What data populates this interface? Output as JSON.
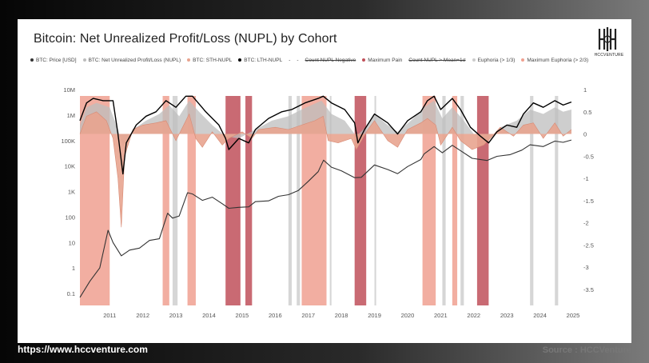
{
  "title": "Bitcoin: Net Unrealized Profit/Loss (NUPL) by Cohort",
  "logo_text": "HCCVENTURE",
  "footer": {
    "url": "https://www.hccventure.com",
    "source": "Source : HCCVenture"
  },
  "legend": [
    {
      "label": "BTC: Price [USD]",
      "color": "#333333",
      "strike": false
    },
    {
      "label": "BTC: Net Unrealized Profit/Loss (NUPL)",
      "color": "#bdbdbd",
      "strike": false
    },
    {
      "label": "BTC: STH-NUPL",
      "color": "#e8a48f",
      "strike": false
    },
    {
      "label": "BTC: LTH-NUPL",
      "color": "#000000",
      "strike": false
    },
    {
      "label": "-",
      "color": "",
      "strike": false
    },
    {
      "label": "-",
      "color": "",
      "strike": false
    },
    {
      "label": "Count NUPL Negative",
      "color": "",
      "strike": true
    },
    {
      "label": "Maximum Pain",
      "color": "#c0505a",
      "strike": false
    },
    {
      "label": "Count NUPL > Mean+1σ",
      "color": "",
      "strike": true
    },
    {
      "label": "Euphoria (> 1/3)",
      "color": "#cccccc",
      "strike": false
    },
    {
      "label": "Maximum Euphoria (> 2/3)",
      "color": "#f0a090",
      "strike": false
    }
  ],
  "chart_data": {
    "type": "line",
    "x_ticks": [
      "2011",
      "2012",
      "2013",
      "2014",
      "2015",
      "2016",
      "2017",
      "2018",
      "2019",
      "2020",
      "2021",
      "2022",
      "2023",
      "2024",
      "2025"
    ],
    "y_left_ticks": [
      "10M",
      "1M",
      "100K",
      "10K",
      "1K",
      "100",
      "10",
      "1",
      "0.1"
    ],
    "y_left_scale": "log",
    "y_right_ticks": [
      "1",
      "0.5",
      "0",
      "-0.5",
      "-1",
      "-1.5",
      "-2",
      "-2.5",
      "-3",
      "-3.5"
    ],
    "y_right_range": [
      -3.5,
      1
    ],
    "x_range": [
      2010.6,
      2025.5
    ],
    "series": [
      {
        "name": "BTC: Price [USD]",
        "axis": "left",
        "color": "#333333",
        "points": [
          [
            2010.6,
            0.07
          ],
          [
            2010.9,
            0.3
          ],
          [
            2011.2,
            1
          ],
          [
            2011.45,
            30
          ],
          [
            2011.6,
            10
          ],
          [
            2011.85,
            3
          ],
          [
            2012.1,
            5
          ],
          [
            2012.4,
            6
          ],
          [
            2012.7,
            12
          ],
          [
            2013.0,
            14
          ],
          [
            2013.25,
            140
          ],
          [
            2013.4,
            90
          ],
          [
            2013.6,
            110
          ],
          [
            2013.85,
            900
          ],
          [
            2014.0,
            800
          ],
          [
            2014.3,
            450
          ],
          [
            2014.6,
            600
          ],
          [
            2014.9,
            330
          ],
          [
            2015.1,
            220
          ],
          [
            2015.4,
            240
          ],
          [
            2015.7,
            250
          ],
          [
            2015.9,
            400
          ],
          [
            2016.3,
            430
          ],
          [
            2016.6,
            650
          ],
          [
            2016.9,
            750
          ],
          [
            2017.2,
            1100
          ],
          [
            2017.5,
            2500
          ],
          [
            2017.8,
            6000
          ],
          [
            2017.96,
            17000
          ],
          [
            2018.2,
            9000
          ],
          [
            2018.5,
            6500
          ],
          [
            2018.9,
            3500
          ],
          [
            2019.1,
            3600
          ],
          [
            2019.5,
            11000
          ],
          [
            2019.9,
            7300
          ],
          [
            2020.2,
            5000
          ],
          [
            2020.5,
            9500
          ],
          [
            2020.9,
            18000
          ],
          [
            2021.0,
            30000
          ],
          [
            2021.3,
            58000
          ],
          [
            2021.55,
            33000
          ],
          [
            2021.85,
            65000
          ],
          [
            2022.1,
            40000
          ],
          [
            2022.45,
            20000
          ],
          [
            2022.9,
            16500
          ],
          [
            2023.2,
            24000
          ],
          [
            2023.6,
            28000
          ],
          [
            2023.95,
            42000
          ],
          [
            2024.2,
            68000
          ],
          [
            2024.6,
            58000
          ],
          [
            2024.95,
            95000
          ],
          [
            2025.2,
            85000
          ],
          [
            2025.45,
            105000
          ]
        ]
      },
      {
        "name": "BTC: LTH-NUPL",
        "axis": "right",
        "color": "#000000",
        "points": [
          [
            2010.6,
            0.3
          ],
          [
            2010.8,
            0.7
          ],
          [
            2011.0,
            0.8
          ],
          [
            2011.3,
            0.75
          ],
          [
            2011.6,
            0.75
          ],
          [
            2011.75,
            0.0
          ],
          [
            2011.9,
            -0.9
          ],
          [
            2012.0,
            -0.2
          ],
          [
            2012.3,
            0.2
          ],
          [
            2012.6,
            0.4
          ],
          [
            2012.9,
            0.5
          ],
          [
            2013.2,
            0.75
          ],
          [
            2013.5,
            0.6
          ],
          [
            2013.8,
            0.85
          ],
          [
            2014.0,
            0.85
          ],
          [
            2014.4,
            0.5
          ],
          [
            2014.8,
            0.2
          ],
          [
            2015.0,
            -0.1
          ],
          [
            2015.1,
            -0.35
          ],
          [
            2015.4,
            -0.1
          ],
          [
            2015.7,
            -0.2
          ],
          [
            2015.9,
            0.1
          ],
          [
            2016.3,
            0.35
          ],
          [
            2016.7,
            0.5
          ],
          [
            2017.0,
            0.55
          ],
          [
            2017.4,
            0.7
          ],
          [
            2017.8,
            0.8
          ],
          [
            2017.95,
            0.85
          ],
          [
            2018.2,
            0.7
          ],
          [
            2018.6,
            0.55
          ],
          [
            2018.9,
            0.25
          ],
          [
            2019.0,
            -0.2
          ],
          [
            2019.2,
            0.1
          ],
          [
            2019.5,
            0.45
          ],
          [
            2019.9,
            0.25
          ],
          [
            2020.2,
            0.0
          ],
          [
            2020.5,
            0.3
          ],
          [
            2020.9,
            0.5
          ],
          [
            2021.1,
            0.75
          ],
          [
            2021.3,
            0.85
          ],
          [
            2021.5,
            0.55
          ],
          [
            2021.85,
            0.8
          ],
          [
            2022.1,
            0.55
          ],
          [
            2022.4,
            0.15
          ],
          [
            2022.7,
            -0.05
          ],
          [
            2022.95,
            -0.2
          ],
          [
            2023.2,
            0.05
          ],
          [
            2023.5,
            0.2
          ],
          [
            2023.8,
            0.15
          ],
          [
            2024.0,
            0.45
          ],
          [
            2024.3,
            0.7
          ],
          [
            2024.6,
            0.6
          ],
          [
            2024.95,
            0.75
          ],
          [
            2025.2,
            0.65
          ],
          [
            2025.45,
            0.72
          ]
        ]
      },
      {
        "name": "BTC: Net Unrealized Profit/Loss (NUPL)",
        "axis": "right",
        "color": "#bdbdbd",
        "points": [
          [
            2010.6,
            0.2
          ],
          [
            2010.8,
            0.6
          ],
          [
            2011.1,
            0.7
          ],
          [
            2011.5,
            0.6
          ],
          [
            2011.75,
            0.1
          ],
          [
            2011.9,
            -0.3
          ],
          [
            2012.2,
            0.1
          ],
          [
            2012.6,
            0.3
          ],
          [
            2013.0,
            0.45
          ],
          [
            2013.3,
            0.65
          ],
          [
            2013.6,
            0.4
          ],
          [
            2013.9,
            0.75
          ],
          [
            2014.2,
            0.5
          ],
          [
            2014.6,
            0.2
          ],
          [
            2015.0,
            -0.05
          ],
          [
            2015.4,
            -0.1
          ],
          [
            2015.9,
            0.1
          ],
          [
            2016.4,
            0.3
          ],
          [
            2016.9,
            0.4
          ],
          [
            2017.3,
            0.55
          ],
          [
            2017.9,
            0.75
          ],
          [
            2018.2,
            0.45
          ],
          [
            2018.6,
            0.3
          ],
          [
            2018.95,
            -0.05
          ],
          [
            2019.3,
            0.2
          ],
          [
            2019.5,
            0.45
          ],
          [
            2019.9,
            0.2
          ],
          [
            2020.2,
            0.05
          ],
          [
            2020.6,
            0.3
          ],
          [
            2021.0,
            0.6
          ],
          [
            2021.3,
            0.75
          ],
          [
            2021.55,
            0.35
          ],
          [
            2021.85,
            0.6
          ],
          [
            2022.2,
            0.3
          ],
          [
            2022.5,
            0.0
          ],
          [
            2022.9,
            -0.15
          ],
          [
            2023.3,
            0.15
          ],
          [
            2023.8,
            0.3
          ],
          [
            2024.2,
            0.55
          ],
          [
            2024.6,
            0.45
          ],
          [
            2024.95,
            0.6
          ],
          [
            2025.2,
            0.5
          ],
          [
            2025.45,
            0.55
          ]
        ]
      },
      {
        "name": "BTC: STH-NUPL",
        "axis": "right",
        "color": "#e8a48f",
        "points": [
          [
            2010.6,
            0.0
          ],
          [
            2010.8,
            0.4
          ],
          [
            2011.1,
            0.5
          ],
          [
            2011.4,
            0.3
          ],
          [
            2011.6,
            -0.1
          ],
          [
            2011.75,
            -1.0
          ],
          [
            2011.85,
            -2.1
          ],
          [
            2011.95,
            -0.5
          ],
          [
            2012.2,
            0.1
          ],
          [
            2012.5,
            0.2
          ],
          [
            2012.9,
            0.25
          ],
          [
            2013.2,
            0.3
          ],
          [
            2013.5,
            -0.15
          ],
          [
            2013.9,
            0.45
          ],
          [
            2014.1,
            -0.1
          ],
          [
            2014.3,
            -0.3
          ],
          [
            2014.6,
            0.05
          ],
          [
            2014.9,
            -0.25
          ],
          [
            2015.1,
            -0.1
          ],
          [
            2015.5,
            0.05
          ],
          [
            2015.8,
            -0.1
          ],
          [
            2016.0,
            0.1
          ],
          [
            2016.5,
            0.15
          ],
          [
            2016.9,
            0.1
          ],
          [
            2017.3,
            0.2
          ],
          [
            2017.7,
            0.3
          ],
          [
            2017.95,
            0.4
          ],
          [
            2018.1,
            -0.15
          ],
          [
            2018.4,
            -0.2
          ],
          [
            2018.8,
            -0.1
          ],
          [
            2018.95,
            -0.35
          ],
          [
            2019.3,
            0.1
          ],
          [
            2019.5,
            0.3
          ],
          [
            2019.9,
            -0.15
          ],
          [
            2020.2,
            -0.3
          ],
          [
            2020.5,
            0.1
          ],
          [
            2020.9,
            0.25
          ],
          [
            2021.1,
            0.35
          ],
          [
            2021.35,
            0.2
          ],
          [
            2021.5,
            -0.25
          ],
          [
            2021.85,
            0.15
          ],
          [
            2022.1,
            -0.15
          ],
          [
            2022.45,
            -0.35
          ],
          [
            2022.8,
            -0.25
          ],
          [
            2023.0,
            -0.1
          ],
          [
            2023.3,
            0.15
          ],
          [
            2023.7,
            -0.05
          ],
          [
            2024.0,
            0.2
          ],
          [
            2024.3,
            0.25
          ],
          [
            2024.6,
            -0.1
          ],
          [
            2024.95,
            0.25
          ],
          [
            2025.2,
            -0.05
          ],
          [
            2025.45,
            0.1
          ]
        ]
      }
    ],
    "bands": [
      {
        "type": "maximum-pain",
        "color": "#c0505a",
        "ranges": [
          [
            2015.0,
            2015.45
          ],
          [
            2015.6,
            2015.8
          ],
          [
            2018.9,
            2019.25
          ],
          [
            2022.6,
            2022.95
          ]
        ]
      },
      {
        "type": "maximum-euphoria",
        "color": "#f0a090",
        "ranges": [
          [
            2010.6,
            2011.5
          ],
          [
            2013.1,
            2013.3
          ],
          [
            2013.85,
            2014.1
          ],
          [
            2017.3,
            2018.05
          ],
          [
            2020.95,
            2021.35
          ],
          [
            2021.85,
            2022.0
          ]
        ]
      },
      {
        "type": "euphoria",
        "color": "#cccccc",
        "ranges": [
          [
            2013.4,
            2013.55
          ],
          [
            2016.9,
            2017.0
          ],
          [
            2017.15,
            2017.25
          ],
          [
            2018.15,
            2018.2
          ],
          [
            2019.5,
            2019.55
          ],
          [
            2021.55,
            2021.65
          ],
          [
            2022.1,
            2022.2
          ],
          [
            2024.2,
            2024.3
          ],
          [
            2024.95,
            2025.05
          ]
        ]
      }
    ]
  }
}
